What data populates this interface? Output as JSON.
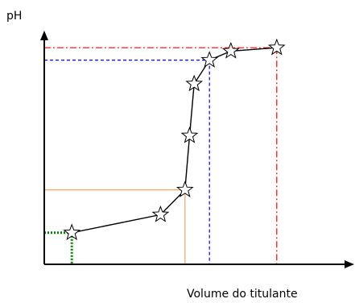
{
  "chart_data": {
    "type": "line",
    "title": "",
    "xlabel": "Volume do titulante",
    "ylabel": "pH",
    "xlim": [
      0,
      100
    ],
    "ylim": [
      0,
      100
    ],
    "grid": false,
    "legend": "none",
    "series": [
      {
        "marker": "star",
        "color": "#000000",
        "x": [
          9,
          38,
          46,
          47.5,
          49,
          54,
          61,
          76
        ],
        "y": [
          14,
          22,
          33,
          57,
          80,
          90.5,
          94.5,
          96
        ]
      }
    ],
    "reference_lines": [
      {
        "color": "#008000",
        "style": "dotted",
        "x": 9,
        "y": 14
      },
      {
        "color": "#f4a460",
        "style": "solid",
        "x": 46,
        "y": 33
      },
      {
        "color": "#0000ff",
        "style": "dashed",
        "x": 54,
        "y": 90.5
      },
      {
        "color": "#ff0000",
        "style": "dash-dot",
        "x": 76,
        "y": 96
      }
    ]
  }
}
